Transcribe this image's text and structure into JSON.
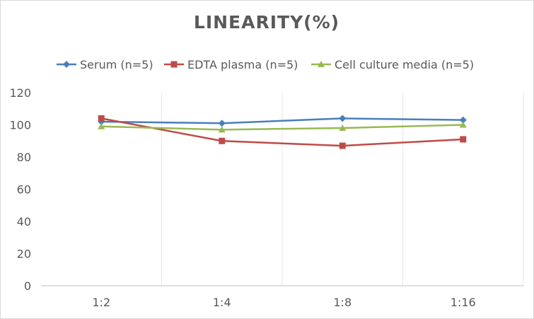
{
  "chart_data": {
    "type": "line",
    "title": "LINEARITY(%)",
    "xlabel": "",
    "ylabel": "",
    "categories": [
      "1:2",
      "1:4",
      "1:8",
      "1:16"
    ],
    "ylim": [
      0,
      120
    ],
    "yticks": [
      0,
      20,
      40,
      60,
      80,
      100,
      120
    ],
    "grid": "vertical",
    "legend_position": "top",
    "series": [
      {
        "name": "Serum (n=5)",
        "color": "#4a7ebb",
        "marker": "diamond",
        "values": [
          102,
          101,
          104,
          103
        ]
      },
      {
        "name": "EDTA plasma (n=5)",
        "color": "#be4b48",
        "marker": "square",
        "values": [
          104,
          90,
          87,
          91
        ]
      },
      {
        "name": "Cell culture media (n=5)",
        "color": "#98b954",
        "marker": "triangle",
        "values": [
          99,
          97,
          98,
          100
        ]
      }
    ]
  }
}
